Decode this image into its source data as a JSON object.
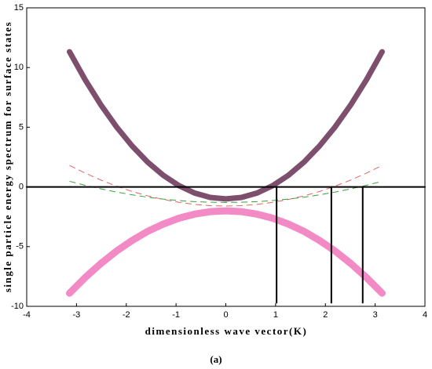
{
  "chart_data": {
    "type": "line",
    "x_label": "dimensionless wave vector(K)",
    "y_label": "single particle energy spectrum  for surface states",
    "caption": "(a)",
    "xlim": [
      -4,
      4
    ],
    "xticks": [
      -4,
      -3,
      -2,
      -1,
      0,
      1,
      2,
      3,
      4
    ],
    "ylim": [
      -10,
      15
    ],
    "yticks": [
      -10,
      -5,
      0,
      5,
      10,
      15
    ],
    "series": [
      {
        "color": "#7d4f6d",
        "width": 7,
        "dash": false,
        "x": [
          -3.14,
          -2.826,
          -2.512,
          -2.198,
          -1.884,
          -1.57,
          -1.256,
          -0.942,
          -0.628,
          -0.314,
          0,
          0.314,
          0.628,
          0.942,
          1.256,
          1.57,
          1.884,
          2.198,
          2.512,
          2.826,
          3.14
        ],
        "values": [
          11.32,
          8.98,
          6.89,
          5.04,
          3.44,
          2.08,
          0.97,
          0.11,
          -0.51,
          -0.88,
          -1,
          -0.88,
          -0.51,
          0.11,
          0.97,
          2.08,
          3.44,
          5.04,
          6.89,
          8.98,
          11.32
        ]
      },
      {
        "color": "#f28ac6",
        "width": 9,
        "dash": false,
        "x": [
          -3.14,
          -2.826,
          -2.512,
          -2.198,
          -1.884,
          -1.57,
          -1.256,
          -0.942,
          -0.628,
          -0.314,
          0,
          0.314,
          0.628,
          0.942,
          1.256,
          1.57,
          1.884,
          2.198,
          2.512,
          2.826,
          3.14
        ],
        "values": [
          -8.9,
          -7.59,
          -6.42,
          -5.38,
          -4.49,
          -3.72,
          -3.11,
          -2.62,
          -2.28,
          -2.07,
          -2,
          -2.07,
          -2.28,
          -2.62,
          -3.11,
          -3.72,
          -4.49,
          -5.38,
          -6.42,
          -7.59,
          -8.9
        ]
      },
      {
        "color": "#e06464",
        "width": 1,
        "dash": true,
        "x": [
          -3.14,
          -2.826,
          -2.512,
          -2.198,
          -1.884,
          -1.57,
          -1.256,
          -0.942,
          -0.628,
          -0.314,
          0,
          0.314,
          0.628,
          0.942,
          1.256,
          1.57,
          1.884,
          2.198,
          2.512,
          2.826,
          3.14
        ],
        "values": [
          1.8,
          1.16,
          0.58,
          0.07,
          -0.38,
          -0.75,
          -1.05,
          -1.29,
          -1.46,
          -1.57,
          -1.6,
          -1.57,
          -1.46,
          -1.29,
          -1.05,
          -0.75,
          -0.38,
          0.07,
          0.58,
          1.16,
          1.8
        ]
      },
      {
        "color": "#3aa03a",
        "width": 1,
        "dash": true,
        "x": [
          -3.14,
          -2.826,
          -2.512,
          -2.198,
          -1.884,
          -1.57,
          -1.256,
          -0.942,
          -0.628,
          -0.314,
          0,
          0.314,
          0.628,
          0.942,
          1.256,
          1.57,
          1.884,
          2.198,
          2.512,
          2.826,
          3.14
        ],
        "values": [
          0.47,
          0.14,
          -0.16,
          -0.43,
          -0.66,
          -0.86,
          -1.02,
          -1.14,
          -1.23,
          -1.28,
          -1.3,
          -1.28,
          -1.23,
          -1.14,
          -1.02,
          -0.86,
          -0.66,
          -0.43,
          -0.16,
          0.14,
          0.47
        ]
      },
      {
        "color": "#000000",
        "width": 2,
        "dash": false,
        "x": [
          -4,
          4
        ],
        "values": [
          0,
          0
        ]
      },
      {
        "color": "#000000",
        "width": 2,
        "dash": false,
        "x": [
          1.02,
          1.02
        ],
        "values": [
          0,
          -9.7
        ]
      },
      {
        "color": "#000000",
        "width": 2,
        "dash": false,
        "x": [
          2.12,
          2.12
        ],
        "values": [
          0,
          -9.7
        ]
      },
      {
        "color": "#000000",
        "width": 2,
        "dash": false,
        "x": [
          2.75,
          2.75
        ],
        "values": [
          0,
          -9.7
        ]
      }
    ]
  }
}
